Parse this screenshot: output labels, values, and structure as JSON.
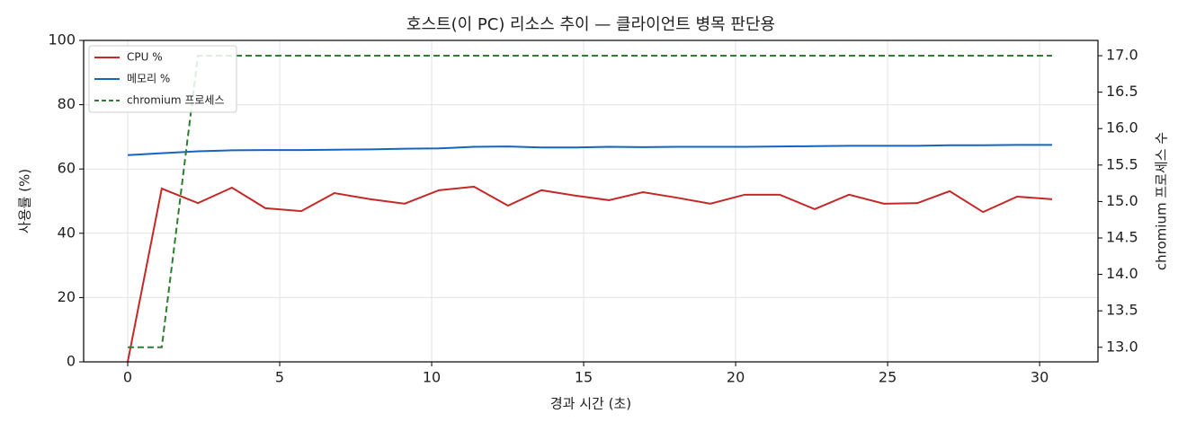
{
  "chart_data": {
    "type": "line",
    "title": "호스트(이 PC) 리소스 추이 — 클라이언트 병목 판단용",
    "xlabel": "경과 시간 (초)",
    "ylabel": "사용률 (%)",
    "y2label": "chromium 프로세스 수",
    "x": [
      0,
      1.12,
      2.31,
      3.43,
      4.53,
      5.71,
      6.8,
      7.99,
      9.11,
      10.24,
      11.39,
      12.51,
      13.61,
      14.73,
      15.83,
      16.95,
      18.05,
      19.17,
      20.3,
      21.45,
      22.6,
      23.73,
      24.88,
      25.98,
      27.04,
      28.14,
      29.26,
      30.41
    ],
    "series": [
      {
        "name": "CPU %",
        "color": "#c62828",
        "style": "solid",
        "values": [
          0,
          53.9,
          49.4,
          54.2,
          47.8,
          46.9,
          52.5,
          50.6,
          49.2,
          53.4,
          54.5,
          48.6,
          53.4,
          51.7,
          50.3,
          52.8,
          51.1,
          49.2,
          52.0,
          52.0,
          47.5,
          52.0,
          49.2,
          49.4,
          53.1,
          46.6,
          51.4,
          50.6
        ]
      },
      {
        "name": "메모리 %",
        "color": "#1565c0",
        "style": "solid",
        "values": [
          64.3,
          64.9,
          65.5,
          65.8,
          65.9,
          65.9,
          66.0,
          66.1,
          66.3,
          66.4,
          66.9,
          67.0,
          66.7,
          66.7,
          66.9,
          66.8,
          66.9,
          66.9,
          66.9,
          67.0,
          67.1,
          67.2,
          67.2,
          67.2,
          67.4,
          67.4,
          67.5,
          67.5
        ]
      },
      {
        "name": "chromium 프로세스",
        "color": "#2e7d32",
        "style": "dashed",
        "axis": "y2",
        "values": [
          13,
          13,
          17,
          17,
          17,
          17,
          17,
          17,
          17,
          17,
          17,
          17,
          17,
          17,
          17,
          17,
          17,
          17,
          17,
          17,
          17,
          17,
          17,
          17,
          17,
          17,
          17,
          17
        ]
      }
    ],
    "xlim": [
      -1.45,
      31.92
    ],
    "xticks": [
      0,
      5,
      10,
      15,
      20,
      25,
      30
    ],
    "ylim": [
      0,
      100
    ],
    "yticks": [
      0,
      20,
      40,
      60,
      80,
      100
    ],
    "y2lim": [
      12.8,
      17.21
    ],
    "y2ticks": [
      {
        "value": 13,
        "label": "13.0"
      },
      {
        "value": 13.5,
        "label": "13.5"
      },
      {
        "value": 14,
        "label": "14.0"
      },
      {
        "value": 14.5,
        "label": "14.5"
      },
      {
        "value": 15,
        "label": "15.0"
      },
      {
        "value": 15.5,
        "label": "15.5"
      },
      {
        "value": 16,
        "label": "16.0"
      },
      {
        "value": 16.5,
        "label": "16.5"
      },
      {
        "value": 17,
        "label": "17.0"
      }
    ],
    "grid": true,
    "legend": "upper left"
  }
}
